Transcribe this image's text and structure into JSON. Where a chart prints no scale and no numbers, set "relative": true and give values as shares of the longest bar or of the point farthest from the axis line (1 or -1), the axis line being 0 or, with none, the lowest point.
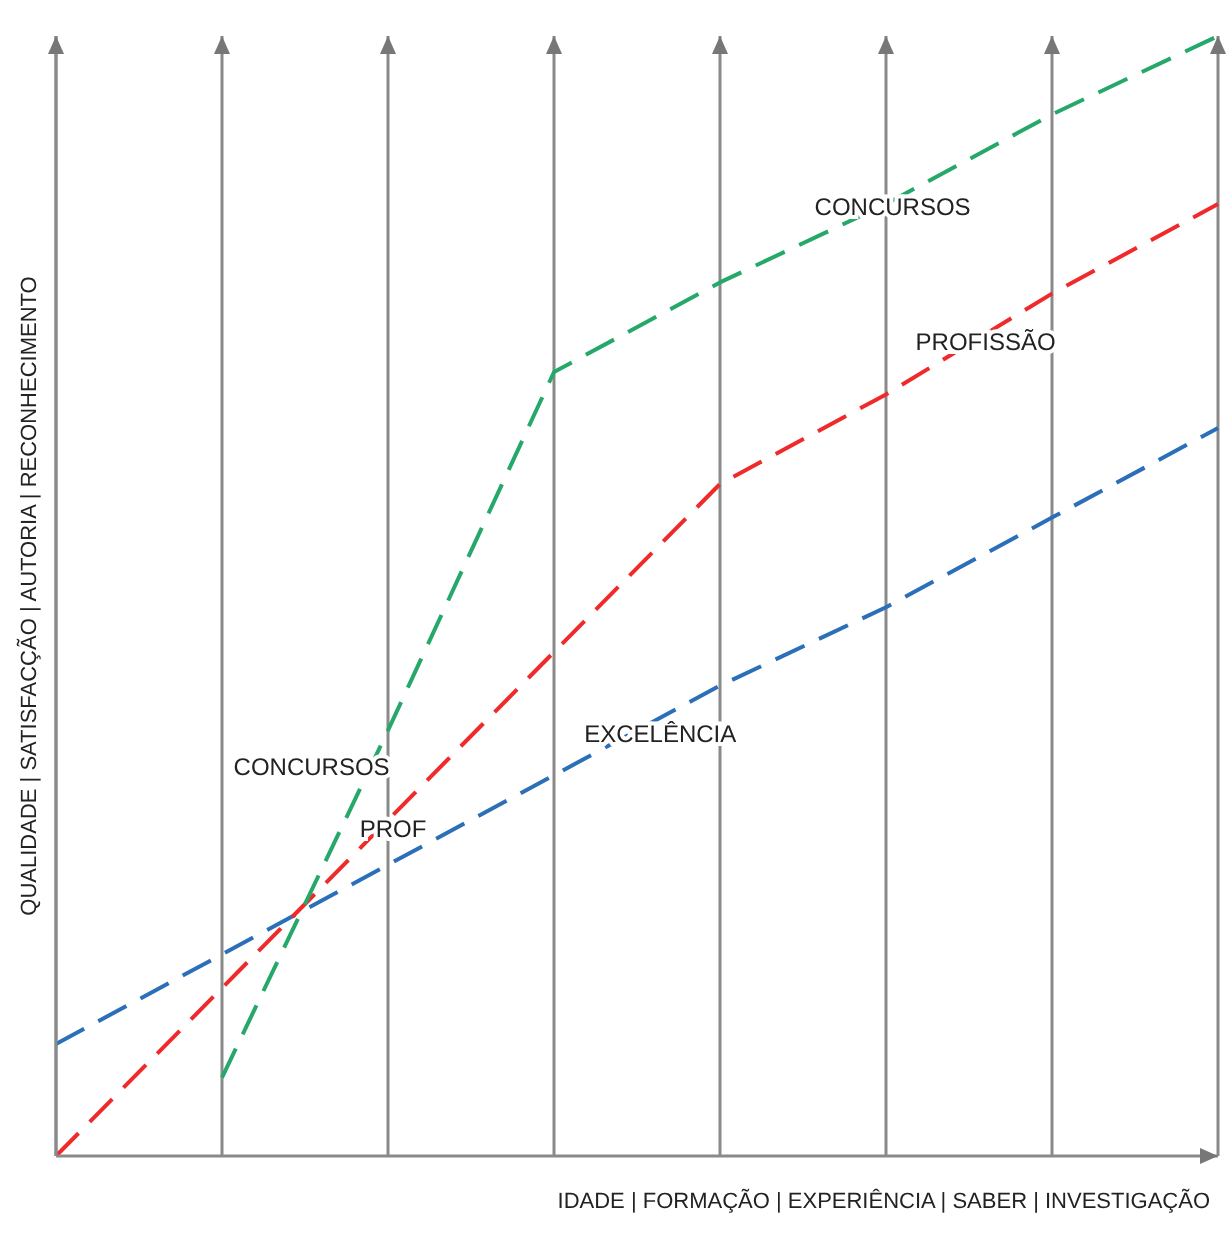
{
  "chart_data": {
    "type": "line",
    "relative": true,
    "xlabel": "IDADE | FORMAÇÃO | EXPERIÊNCIA | SABER | INVESTIGAÇÃO",
    "ylabel": "QUALIDADE | SATISFACÇÃO | AUTORIA | RECONHECIMENTO",
    "categories": [
      null,
      null,
      null,
      null,
      null,
      null,
      null,
      null
    ],
    "grid": "x",
    "series": [
      {
        "name": "EXCELÊNCIA",
        "color": "#2a6fb8",
        "line_style": "dashed",
        "values": [
          0.1,
          0.18,
          0.26,
          0.34,
          0.42,
          0.49,
          0.57,
          0.65
        ]
      },
      {
        "name": "PROFISSÃO",
        "color": "#f02a2a",
        "line_style": "dashed",
        "values": [
          0,
          0.15,
          0.3,
          0.45,
          0.6,
          0.68,
          0.77,
          0.85
        ]
      },
      {
        "name": "CONCURSOS",
        "color": "#25a86a",
        "line_style": "dashed",
        "values": [
          null,
          0.07,
          0.38,
          0.7,
          0.78,
          0.85,
          0.93,
          1.0
        ]
      }
    ],
    "annotations": [
      "CONCURSOS",
      "PROF"
    ]
  }
}
